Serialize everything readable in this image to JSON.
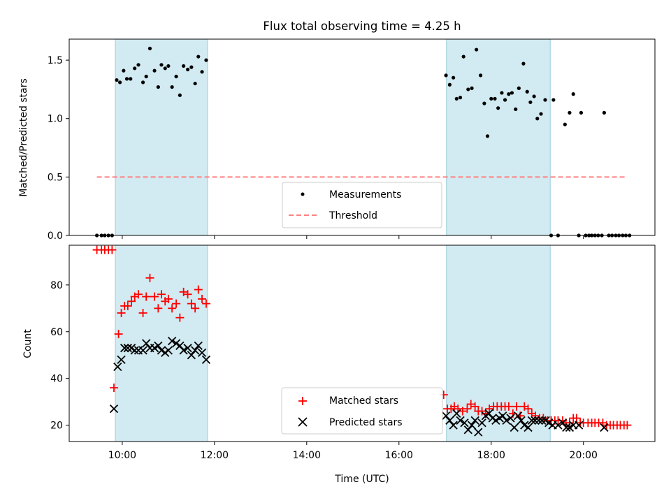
{
  "chart_data": {
    "title": "Flux total observing time = 4.25 h",
    "type": "scatter",
    "xlabel": "Time (UTC)",
    "x_ticks": [
      "10:00",
      "12:00",
      "14:00",
      "16:00",
      "18:00",
      "20:00"
    ],
    "x_tick_hours": [
      10,
      12,
      14,
      16,
      18,
      20
    ],
    "x_range_hours": [
      8.85,
      21.55
    ],
    "observing_windows": [
      [
        9.85,
        11.85
      ],
      [
        17.03,
        19.28
      ]
    ],
    "colors": {
      "window": "#add8e6",
      "measurements": "#000000",
      "threshold": "#ff8080",
      "matched": "#ff0000",
      "predicted": "#000000"
    },
    "top_panel": {
      "ylabel": "Matched/Predicted stars",
      "ylim": [
        0,
        1.68
      ],
      "yticks": [
        0.0,
        0.5,
        1.0,
        1.5
      ],
      "ytick_labels": [
        "0.0",
        "0.5",
        "1.0",
        "1.5"
      ],
      "legend": [
        "Measurements",
        "Threshold"
      ],
      "threshold": {
        "value": 0.5,
        "x_range": [
          9.45,
          20.95
        ]
      },
      "measurements": [
        [
          9.45,
          0
        ],
        [
          9.55,
          0
        ],
        [
          9.62,
          0
        ],
        [
          9.7,
          0
        ],
        [
          9.78,
          0
        ],
        [
          9.88,
          1.33
        ],
        [
          9.95,
          1.31
        ],
        [
          10.03,
          1.41
        ],
        [
          10.1,
          1.34
        ],
        [
          10.18,
          1.34
        ],
        [
          10.27,
          1.43
        ],
        [
          10.35,
          1.46
        ],
        [
          10.45,
          1.31
        ],
        [
          10.52,
          1.36
        ],
        [
          10.6,
          1.6
        ],
        [
          10.7,
          1.41
        ],
        [
          10.78,
          1.27
        ],
        [
          10.85,
          1.46
        ],
        [
          10.93,
          1.43
        ],
        [
          11.0,
          1.45
        ],
        [
          11.08,
          1.27
        ],
        [
          11.17,
          1.36
        ],
        [
          11.25,
          1.2
        ],
        [
          11.33,
          1.45
        ],
        [
          11.42,
          1.42
        ],
        [
          11.5,
          1.44
        ],
        [
          11.58,
          1.3
        ],
        [
          11.65,
          1.53
        ],
        [
          11.73,
          1.4
        ],
        [
          11.82,
          1.5
        ],
        [
          17.02,
          1.37
        ],
        [
          17.1,
          1.29
        ],
        [
          17.18,
          1.35
        ],
        [
          17.25,
          1.17
        ],
        [
          17.33,
          1.18
        ],
        [
          17.4,
          1.53
        ],
        [
          17.5,
          1.25
        ],
        [
          17.58,
          1.26
        ],
        [
          17.68,
          1.59
        ],
        [
          17.77,
          1.37
        ],
        [
          17.85,
          1.13
        ],
        [
          17.92,
          0.85
        ],
        [
          18.0,
          1.17
        ],
        [
          18.08,
          1.17
        ],
        [
          18.15,
          1.09
        ],
        [
          18.23,
          1.22
        ],
        [
          18.3,
          1.16
        ],
        [
          18.38,
          1.21
        ],
        [
          18.45,
          1.22
        ],
        [
          18.53,
          1.08
        ],
        [
          18.6,
          1.26
        ],
        [
          18.7,
          1.47
        ],
        [
          18.78,
          1.23
        ],
        [
          18.85,
          1.14
        ],
        [
          18.93,
          1.19
        ],
        [
          19.0,
          1.0
        ],
        [
          19.08,
          1.04
        ],
        [
          19.17,
          1.16
        ],
        [
          19.3,
          0
        ],
        [
          19.35,
          1.16
        ],
        [
          19.45,
          0
        ],
        [
          19.6,
          0.95
        ],
        [
          19.7,
          1.05
        ],
        [
          19.78,
          1.21
        ],
        [
          19.9,
          0
        ],
        [
          19.95,
          1.05
        ],
        [
          20.05,
          0
        ],
        [
          20.12,
          0
        ],
        [
          20.18,
          0
        ],
        [
          20.25,
          0
        ],
        [
          20.32,
          0
        ],
        [
          20.4,
          0
        ],
        [
          20.45,
          1.05
        ],
        [
          20.55,
          0
        ],
        [
          20.62,
          0
        ],
        [
          20.7,
          0
        ],
        [
          20.77,
          0
        ],
        [
          20.85,
          0
        ],
        [
          20.92,
          0
        ],
        [
          21.0,
          0
        ]
      ]
    },
    "bottom_panel": {
      "ylabel": "Count",
      "ylim": [
        13,
        97
      ],
      "yticks": [
        20,
        40,
        60,
        80
      ],
      "ytick_labels": [
        "20",
        "40",
        "60",
        "80"
      ],
      "legend": [
        "Matched stars",
        "Predicted stars"
      ],
      "series": [
        {
          "name": "Matched stars",
          "marker": "plus",
          "points": [
            [
              9.45,
              95
            ],
            [
              9.55,
              95
            ],
            [
              9.62,
              95
            ],
            [
              9.7,
              95
            ],
            [
              9.78,
              95
            ],
            [
              9.82,
              36
            ],
            [
              9.92,
              59
            ],
            [
              9.98,
              68
            ],
            [
              10.05,
              71
            ],
            [
              10.12,
              71
            ],
            [
              10.2,
              73
            ],
            [
              10.27,
              75
            ],
            [
              10.35,
              76
            ],
            [
              10.45,
              68
            ],
            [
              10.52,
              75
            ],
            [
              10.6,
              83
            ],
            [
              10.7,
              75
            ],
            [
              10.78,
              70
            ],
            [
              10.85,
              76
            ],
            [
              10.93,
              73
            ],
            [
              11.0,
              74
            ],
            [
              11.08,
              70
            ],
            [
              11.17,
              72
            ],
            [
              11.25,
              66
            ],
            [
              11.33,
              77
            ],
            [
              11.42,
              76
            ],
            [
              11.5,
              72
            ],
            [
              11.58,
              70
            ],
            [
              11.65,
              78
            ],
            [
              11.73,
              74
            ],
            [
              11.82,
              72
            ],
            [
              16.97,
              33
            ],
            [
              17.05,
              27
            ],
            [
              17.13,
              27
            ],
            [
              17.2,
              28
            ],
            [
              17.28,
              27
            ],
            [
              17.38,
              26
            ],
            [
              17.48,
              27
            ],
            [
              17.56,
              29
            ],
            [
              17.65,
              28
            ],
            [
              17.72,
              26
            ],
            [
              17.8,
              26
            ],
            [
              17.88,
              25
            ],
            [
              17.96,
              27
            ],
            [
              18.05,
              28
            ],
            [
              18.13,
              28
            ],
            [
              18.22,
              28
            ],
            [
              18.3,
              28
            ],
            [
              18.38,
              28
            ],
            [
              18.47,
              25
            ],
            [
              18.55,
              28
            ],
            [
              18.63,
              24
            ],
            [
              18.72,
              28
            ],
            [
              18.8,
              27
            ],
            [
              18.88,
              25
            ],
            [
              18.96,
              24
            ],
            [
              19.05,
              23
            ],
            [
              19.13,
              23
            ],
            [
              19.22,
              22
            ],
            [
              19.3,
              22
            ],
            [
              19.38,
              22
            ],
            [
              19.45,
              22
            ],
            [
              19.55,
              22
            ],
            [
              19.62,
              21
            ],
            [
              19.7,
              21
            ],
            [
              19.78,
              23
            ],
            [
              19.85,
              23
            ],
            [
              19.93,
              21
            ],
            [
              20.0,
              21
            ],
            [
              20.1,
              21
            ],
            [
              20.18,
              21
            ],
            [
              20.25,
              21
            ],
            [
              20.33,
              21
            ],
            [
              20.42,
              21
            ],
            [
              20.5,
              20
            ],
            [
              20.58,
              20
            ],
            [
              20.65,
              20
            ],
            [
              20.73,
              20
            ],
            [
              20.8,
              20
            ],
            [
              20.88,
              20
            ],
            [
              20.95,
              20
            ]
          ]
        },
        {
          "name": "Predicted stars",
          "marker": "x",
          "points": [
            [
              9.82,
              27
            ],
            [
              9.9,
              45
            ],
            [
              9.98,
              48
            ],
            [
              10.05,
              53
            ],
            [
              10.12,
              53
            ],
            [
              10.2,
              53
            ],
            [
              10.27,
              52
            ],
            [
              10.35,
              52
            ],
            [
              10.45,
              52
            ],
            [
              10.52,
              55
            ],
            [
              10.6,
              53
            ],
            [
              10.7,
              53
            ],
            [
              10.78,
              54
            ],
            [
              10.85,
              52
            ],
            [
              10.93,
              51
            ],
            [
              11.0,
              52
            ],
            [
              11.08,
              56
            ],
            [
              11.17,
              55
            ],
            [
              11.25,
              54
            ],
            [
              11.33,
              52
            ],
            [
              11.42,
              53
            ],
            [
              11.5,
              50
            ],
            [
              11.58,
              52
            ],
            [
              11.65,
              54
            ],
            [
              11.73,
              51
            ],
            [
              11.82,
              48
            ],
            [
              17.02,
              24
            ],
            [
              17.1,
              22
            ],
            [
              17.18,
              20
            ],
            [
              17.25,
              25
            ],
            [
              17.33,
              22
            ],
            [
              17.42,
              21
            ],
            [
              17.5,
              18
            ],
            [
              17.58,
              20
            ],
            [
              17.65,
              22
            ],
            [
              17.72,
              17
            ],
            [
              17.8,
              21
            ],
            [
              17.88,
              24
            ],
            [
              17.95,
              25
            ],
            [
              18.03,
              23
            ],
            [
              18.1,
              22
            ],
            [
              18.18,
              23
            ],
            [
              18.25,
              24
            ],
            [
              18.33,
              22
            ],
            [
              18.42,
              23
            ],
            [
              18.5,
              19
            ],
            [
              18.58,
              24
            ],
            [
              18.65,
              22
            ],
            [
              18.72,
              20
            ],
            [
              18.8,
              19
            ],
            [
              18.88,
              22
            ],
            [
              18.95,
              22
            ],
            [
              19.03,
              22
            ],
            [
              19.1,
              22
            ],
            [
              19.18,
              22
            ],
            [
              19.25,
              21
            ],
            [
              19.33,
              20
            ],
            [
              19.45,
              20
            ],
            [
              19.55,
              21
            ],
            [
              19.63,
              19
            ],
            [
              19.7,
              19
            ],
            [
              19.78,
              20
            ],
            [
              19.9,
              20
            ],
            [
              20.45,
              19
            ]
          ]
        }
      ]
    }
  }
}
